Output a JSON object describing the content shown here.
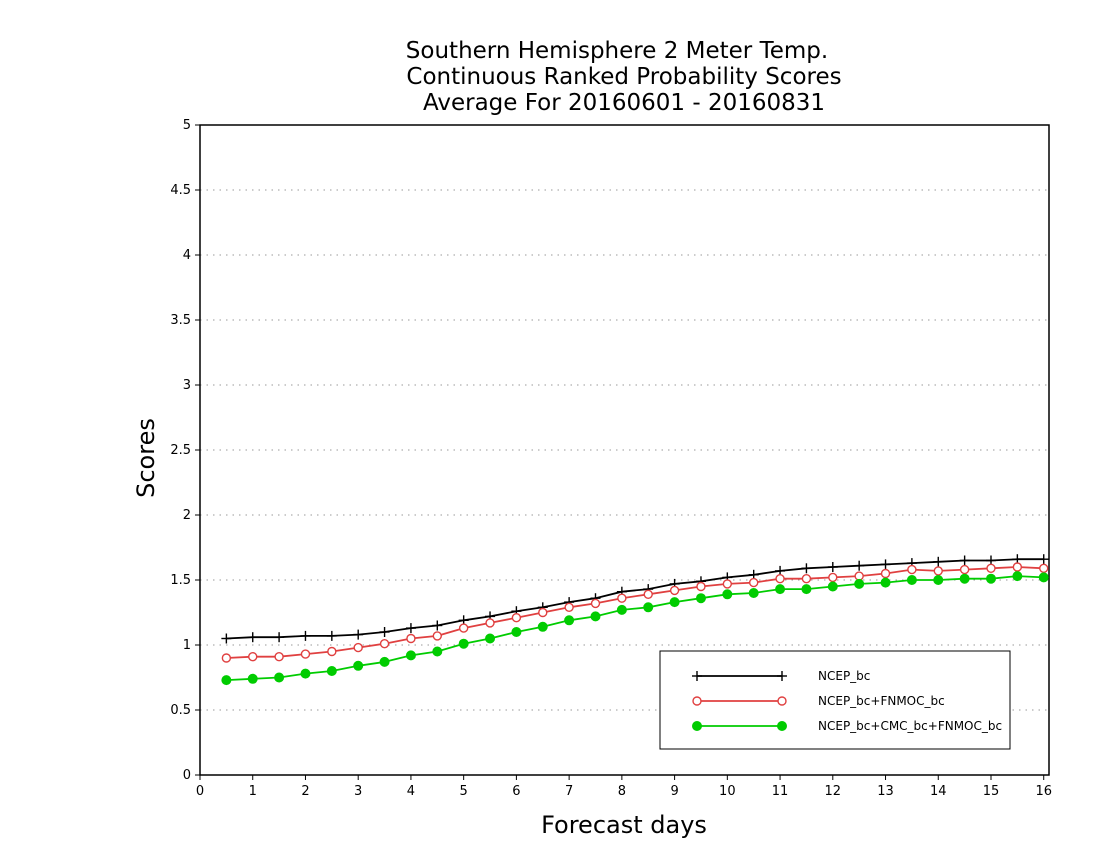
{
  "chart_data": {
    "type": "line",
    "title": "Southern Hemisphere 2 Meter Temp.",
    "subtitle": "Continuous Ranked Probability Scores",
    "subtitle2": "Average For 20160601 - 20160831",
    "xlabel": "Forecast days",
    "ylabel": "Scores",
    "xlim": [
      0,
      16.1
    ],
    "ylim": [
      0,
      5
    ],
    "xticks": [
      "0",
      "1",
      "2",
      "3",
      "4",
      "5",
      "6",
      "7",
      "8",
      "9",
      "10",
      "11",
      "12",
      "13",
      "14",
      "15",
      "16"
    ],
    "yticks": [
      "0",
      "0.5",
      "1",
      "1.5",
      "2",
      "2.5",
      "3",
      "3.5",
      "4",
      "4.5",
      "5"
    ],
    "grid": true,
    "legend_position": "bottom-right",
    "x": [
      0.5,
      1,
      1.5,
      2,
      2.5,
      3,
      3.5,
      4,
      4.5,
      5,
      5.5,
      6,
      6.5,
      7,
      7.5,
      8,
      8.5,
      9,
      9.5,
      10,
      10.5,
      11,
      11.5,
      12,
      12.5,
      13,
      13.5,
      14,
      14.5,
      15,
      15.5,
      16
    ],
    "series": [
      {
        "name": "NCEP_bc",
        "color": "#000000",
        "marker": "plus",
        "values": [
          1.05,
          1.06,
          1.06,
          1.07,
          1.07,
          1.08,
          1.1,
          1.13,
          1.15,
          1.19,
          1.22,
          1.26,
          1.29,
          1.33,
          1.36,
          1.41,
          1.43,
          1.47,
          1.49,
          1.52,
          1.54,
          1.57,
          1.59,
          1.6,
          1.61,
          1.62,
          1.63,
          1.64,
          1.65,
          1.65,
          1.66,
          1.66
        ]
      },
      {
        "name": "NCEP_bc+FNMOC_bc",
        "color": "#e04040",
        "marker": "open-circle",
        "values": [
          0.9,
          0.91,
          0.91,
          0.93,
          0.95,
          0.98,
          1.01,
          1.05,
          1.07,
          1.13,
          1.17,
          1.21,
          1.25,
          1.29,
          1.32,
          1.36,
          1.39,
          1.42,
          1.45,
          1.47,
          1.48,
          1.51,
          1.51,
          1.52,
          1.53,
          1.55,
          1.58,
          1.57,
          1.58,
          1.59,
          1.6,
          1.59
        ]
      },
      {
        "name": "NCEP_bc+CMC_bc+FNMOC_bc",
        "color": "#00cc00",
        "marker": "filled-circle",
        "values": [
          0.73,
          0.74,
          0.75,
          0.78,
          0.8,
          0.84,
          0.87,
          0.92,
          0.95,
          1.01,
          1.05,
          1.1,
          1.14,
          1.19,
          1.22,
          1.27,
          1.29,
          1.33,
          1.36,
          1.39,
          1.4,
          1.43,
          1.43,
          1.45,
          1.47,
          1.48,
          1.5,
          1.5,
          1.51,
          1.51,
          1.53,
          1.52
        ]
      }
    ]
  }
}
